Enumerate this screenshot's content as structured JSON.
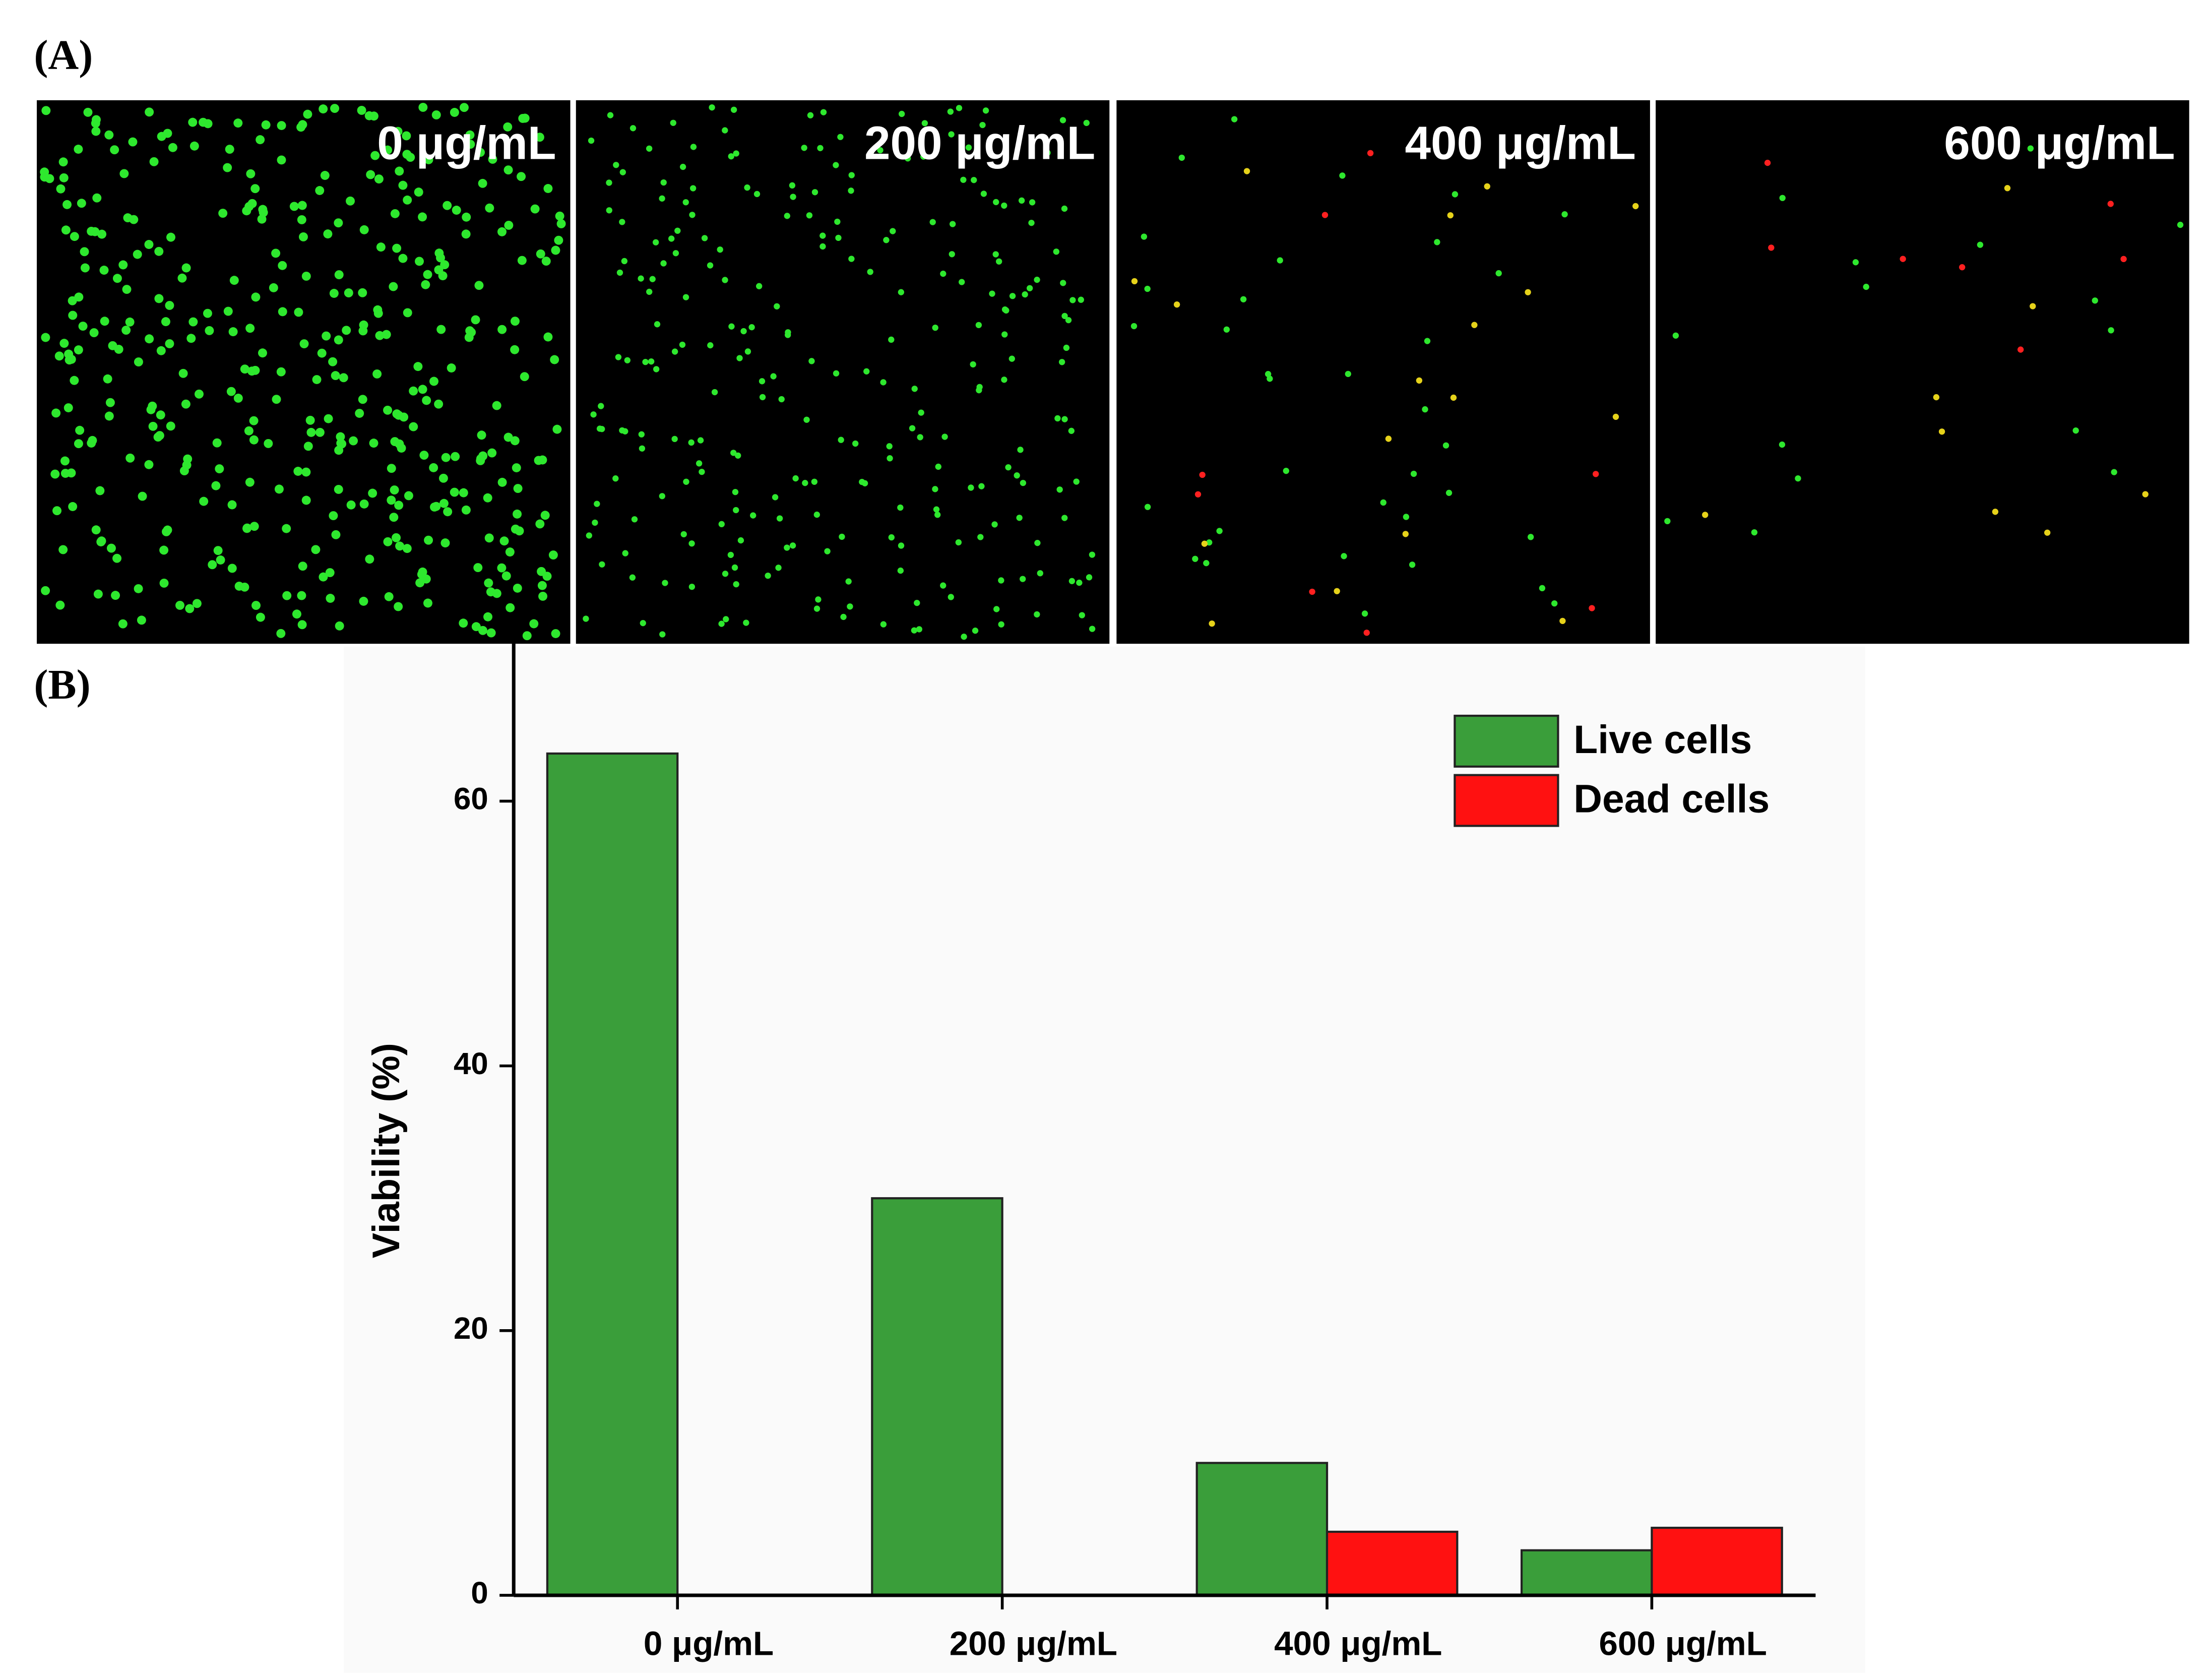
{
  "panel_a": {
    "label": "(A)",
    "images": [
      "0 μg/mL",
      "200 μg/mL",
      "400 μg/mL",
      "600 μg/mL"
    ]
  },
  "panel_b": {
    "label": "(B)"
  },
  "chart_data": {
    "type": "bar",
    "y_label": "Viability (%)",
    "categories": [
      "0 μg/mL",
      "200 μg/mL",
      "400 μg/mL",
      "600 μg/mL"
    ],
    "series": [
      {
        "name": "Live cells",
        "color": "#3a9e3a",
        "values": [
          63.6,
          30,
          10,
          3.4
        ]
      },
      {
        "name": "Dead cells",
        "color": "#ff1111",
        "values": [
          0,
          0,
          4.8,
          5.1
        ]
      }
    ],
    "ylim": [
      0,
      72
    ],
    "yticks": [
      0,
      20,
      40,
      60
    ],
    "legend": "upper right"
  }
}
